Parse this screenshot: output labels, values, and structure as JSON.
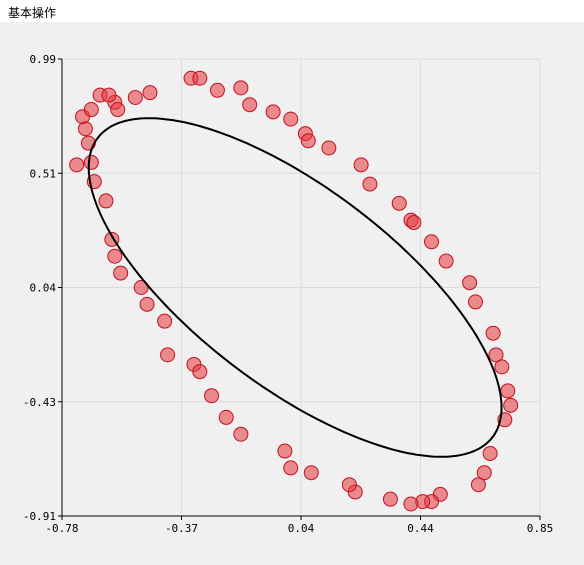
{
  "window": {
    "title": "基本操作"
  },
  "chart_data": {
    "type": "scatter",
    "title": "",
    "xlabel": "",
    "ylabel": "",
    "xlim": [
      -0.78,
      0.85
    ],
    "ylim": [
      -0.91,
      0.99
    ],
    "xticks": [
      "-0.78",
      "-0.37",
      "0.04",
      "0.44",
      "0.85"
    ],
    "yticks": [
      "0.99",
      "0.51",
      "0.04",
      "-0.43",
      "-0.91"
    ],
    "grid": true,
    "series": [
      {
        "kind": "points",
        "color": "#e8363c",
        "x": [
          -0.34,
          -0.31,
          -0.25,
          -0.17,
          -0.14,
          -0.06,
          0.0,
          0.05,
          0.06,
          0.13,
          0.24,
          0.27,
          0.37,
          0.41,
          0.42,
          0.48,
          0.53,
          0.61,
          0.63,
          0.69,
          0.7,
          0.72,
          0.74,
          0.75,
          0.73,
          0.68,
          0.66,
          0.64,
          0.51,
          0.48,
          0.45,
          0.41,
          0.34,
          0.22,
          0.2,
          0.07,
          0.0,
          -0.02,
          -0.17,
          -0.22,
          -0.27,
          -0.33,
          -0.42,
          -0.43,
          -0.49,
          -0.51,
          -0.58,
          -0.6,
          -0.61,
          -0.63,
          -0.67,
          -0.68,
          -0.69,
          -0.7,
          -0.73,
          -0.71,
          -0.68,
          -0.65,
          -0.6,
          -0.59,
          -0.53,
          -0.48,
          -0.62,
          -0.31
        ],
        "y": [
          0.91,
          0.91,
          0.86,
          0.87,
          0.8,
          0.77,
          0.74,
          0.68,
          0.65,
          0.62,
          0.55,
          0.47,
          0.39,
          0.32,
          0.31,
          0.23,
          0.15,
          0.06,
          -0.02,
          -0.15,
          -0.24,
          -0.29,
          -0.39,
          -0.45,
          -0.51,
          -0.65,
          -0.73,
          -0.78,
          -0.82,
          -0.85,
          -0.85,
          -0.86,
          -0.84,
          -0.81,
          -0.78,
          -0.73,
          -0.71,
          -0.64,
          -0.57,
          -0.5,
          -0.41,
          -0.28,
          -0.24,
          -0.1,
          -0.03,
          0.04,
          0.1,
          0.17,
          0.24,
          0.4,
          0.48,
          0.56,
          0.64,
          0.7,
          0.55,
          0.75,
          0.78,
          0.84,
          0.81,
          0.78,
          0.83,
          0.85,
          0.84,
          -0.31
        ]
      },
      {
        "kind": "fitted-ellipse",
        "color": "#000000",
        "center": [
          0.015,
          0.04
        ],
        "semi_axes": [
          0.92,
          0.38
        ],
        "angle_deg": -45
      }
    ]
  }
}
